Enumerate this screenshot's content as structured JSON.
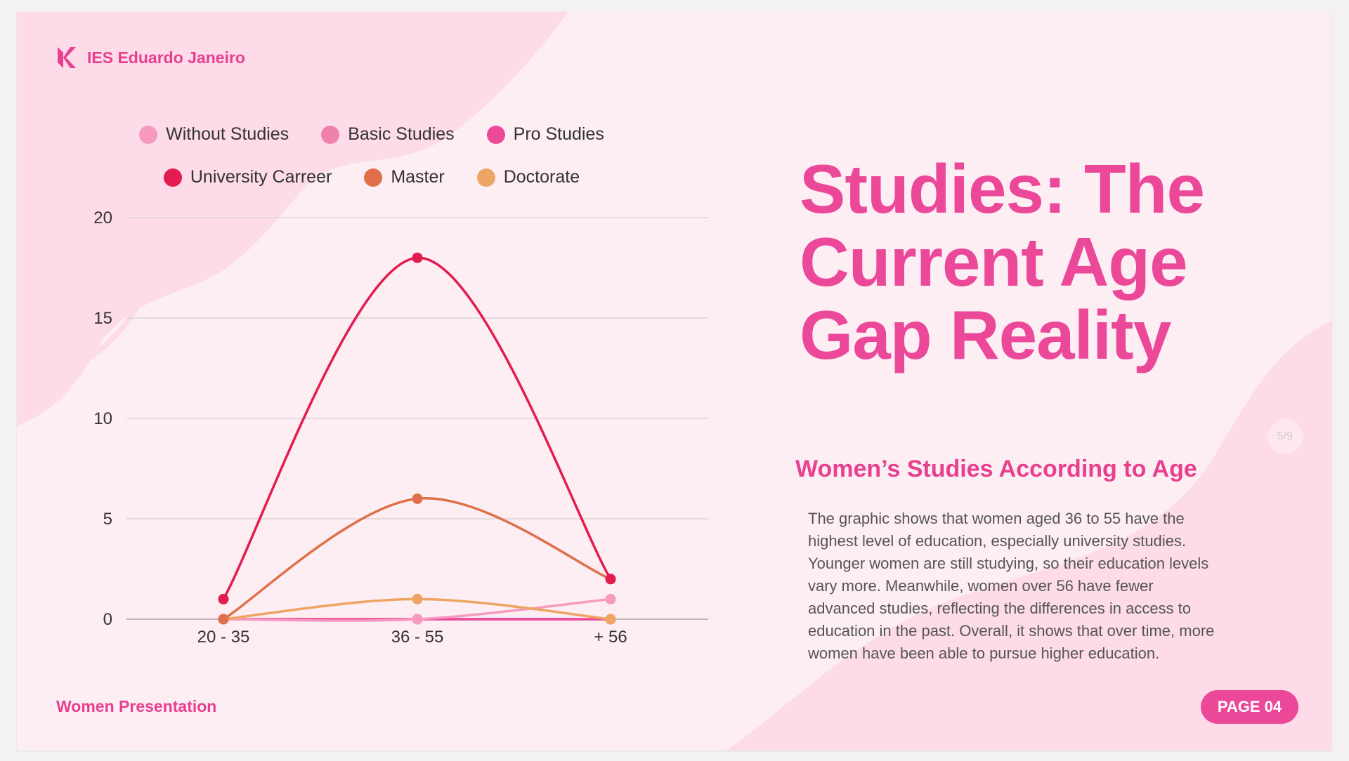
{
  "header": {
    "logo_text": "IES Eduardo Janeiro"
  },
  "title": "Studies: The Current Age Gap Reality",
  "subtitle": "Women’s Studies According to Age",
  "description": "The graphic shows that women aged 36 to 55 have the highest level of education, especially university studies. Younger women are still studying, so their education levels vary more. Meanwhile, women over 56 have fewer advanced studies, reflecting the differences in access to education in the past. Overall, it shows that over time, more women have been able to pursue higher education.",
  "footer": {
    "label": "Women Presentation",
    "page_label": "PAGE 04",
    "slide_counter": "5/9"
  },
  "colors": {
    "accent": "#ec4899",
    "background": "#fdeef4",
    "blob": "#fddbe9"
  },
  "chart_data": {
    "type": "line",
    "categories": [
      "20 - 35",
      "36 - 55",
      "+ 56"
    ],
    "ylim": [
      0,
      20
    ],
    "yticks": [
      "0",
      "5",
      "10",
      "15",
      "20"
    ],
    "grid": true,
    "legend_position": "top",
    "series": [
      {
        "name": "Without Studies",
        "color": "#f79ac0",
        "values": [
          0,
          0,
          1
        ]
      },
      {
        "name": "Basic Studies",
        "color": "#ee82ad",
        "values": [
          0,
          0,
          0
        ]
      },
      {
        "name": "Pro Studies",
        "color": "#ec4899",
        "values": [
          0,
          0,
          0
        ]
      },
      {
        "name": "University Carreer",
        "color": "#e31c4f",
        "values": [
          1,
          18,
          2
        ]
      },
      {
        "name": "Master",
        "color": "#e0704a",
        "values": [
          0,
          6,
          2
        ]
      },
      {
        "name": "Doctorate",
        "color": "#eea462",
        "values": [
          0,
          1,
          0
        ]
      }
    ]
  }
}
